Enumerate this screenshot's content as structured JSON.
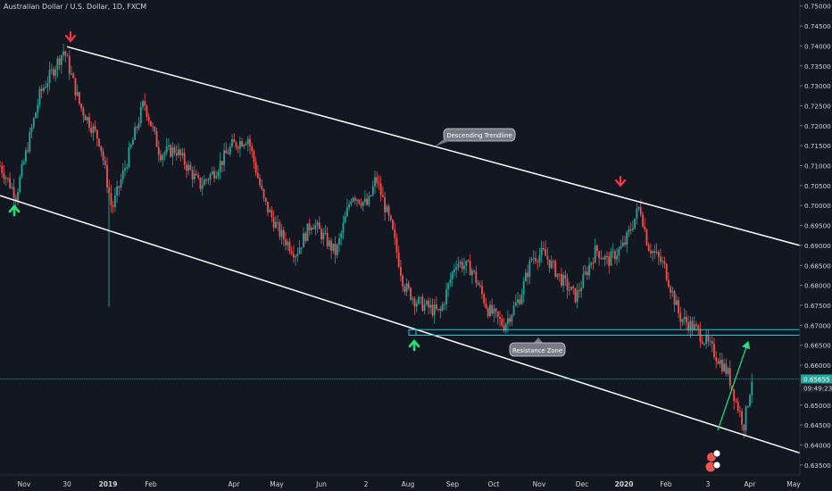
{
  "chart_data": {
    "type": "candlestick",
    "title": "Australian Dollar / U.S. Dollar, 1D, FXCM",
    "y_ticks": [
      "0.75000",
      "0.74500",
      "0.74000",
      "0.73500",
      "0.73000",
      "0.72500",
      "0.72000",
      "0.71500",
      "0.71000",
      "0.70500",
      "0.70000",
      "0.69500",
      "0.69000",
      "0.68500",
      "0.68000",
      "0.67500",
      "0.67000",
      "0.66500",
      "0.66000",
      "0.65500",
      "0.65000",
      "0.64500",
      "0.64000",
      "0.63500"
    ],
    "x_ticks": [
      "Nov",
      "30",
      "2019",
      "Feb",
      "Apr",
      "May",
      "Jun",
      "2",
      "Aug",
      "Sep",
      "Oct",
      "Nov",
      "Dec",
      "2020",
      "Feb",
      "3",
      "Apr",
      "May"
    ],
    "ylim": [
      0.6325,
      0.7515
    ],
    "current_price": "0.65655",
    "countdown": "09:49:23",
    "resistance_zone": [
      0.6675,
      0.6689
    ],
    "annotations": {
      "trendline_label": "Descending Trendline",
      "zone_label": "Resistance Zone"
    },
    "price_path": [
      [
        0.0,
        0.71
      ],
      [
        0.02,
        0.7025
      ],
      [
        0.05,
        0.728
      ],
      [
        0.08,
        0.739
      ],
      [
        0.1,
        0.725
      ],
      [
        0.125,
        0.716
      ],
      [
        0.14,
        0.699
      ],
      [
        0.16,
        0.712
      ],
      [
        0.18,
        0.726
      ],
      [
        0.2,
        0.713
      ],
      [
        0.22,
        0.714
      ],
      [
        0.25,
        0.705
      ],
      [
        0.27,
        0.709
      ],
      [
        0.29,
        0.715
      ],
      [
        0.31,
        0.717
      ],
      [
        0.33,
        0.701
      ],
      [
        0.35,
        0.693
      ],
      [
        0.37,
        0.688
      ],
      [
        0.39,
        0.696
      ],
      [
        0.42,
        0.688
      ],
      [
        0.44,
        0.703
      ],
      [
        0.46,
        0.7
      ],
      [
        0.47,
        0.707
      ],
      [
        0.49,
        0.694
      ],
      [
        0.505,
        0.68
      ],
      [
        0.52,
        0.676
      ],
      [
        0.55,
        0.673
      ],
      [
        0.57,
        0.686
      ],
      [
        0.59,
        0.684
      ],
      [
        0.61,
        0.674
      ],
      [
        0.63,
        0.67
      ],
      [
        0.65,
        0.677
      ],
      [
        0.665,
        0.687
      ],
      [
        0.68,
        0.688
      ],
      [
        0.7,
        0.682
      ],
      [
        0.72,
        0.677
      ],
      [
        0.745,
        0.689
      ],
      [
        0.76,
        0.686
      ],
      [
        0.78,
        0.69
      ],
      [
        0.8,
        0.7
      ],
      [
        0.81,
        0.69
      ],
      [
        0.83,
        0.685
      ],
      [
        0.85,
        0.672
      ],
      [
        0.87,
        0.669
      ],
      [
        0.89,
        0.664
      ],
      [
        0.91,
        0.658
      ],
      [
        0.92,
        0.651
      ],
      [
        0.93,
        0.645
      ],
      [
        0.94,
        0.6566
      ]
    ]
  }
}
